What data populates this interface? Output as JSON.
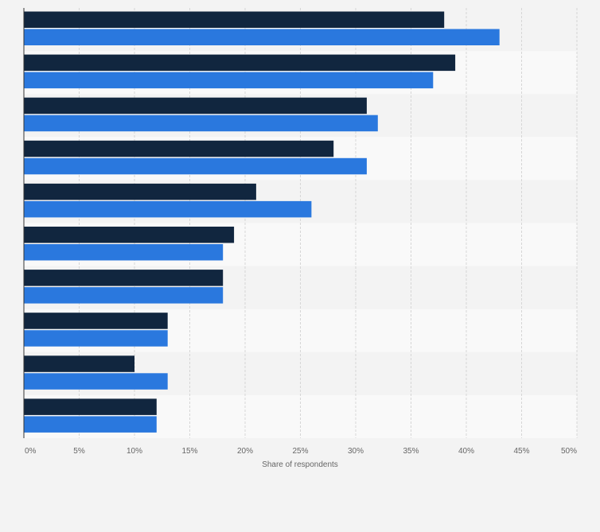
{
  "chart_data": {
    "type": "bar",
    "orientation": "horizontal",
    "xlabel": "Share of respondents",
    "xlim": [
      0,
      50
    ],
    "xticks": [
      "0%",
      "5%",
      "10%",
      "15%",
      "20%",
      "25%",
      "30%",
      "35%",
      "40%",
      "45%",
      "50%"
    ],
    "grid": true,
    "categories": [
      "",
      "",
      "",
      "",
      "",
      "",
      "",
      "",
      "",
      ""
    ],
    "series": [
      {
        "color": "#11263f",
        "values": [
          38,
          39,
          31,
          28,
          21,
          19,
          18,
          13,
          10,
          12
        ]
      },
      {
        "color": "#2a78de",
        "values": [
          43,
          37,
          32,
          31,
          26,
          18,
          18,
          13,
          13,
          12
        ]
      }
    ]
  }
}
